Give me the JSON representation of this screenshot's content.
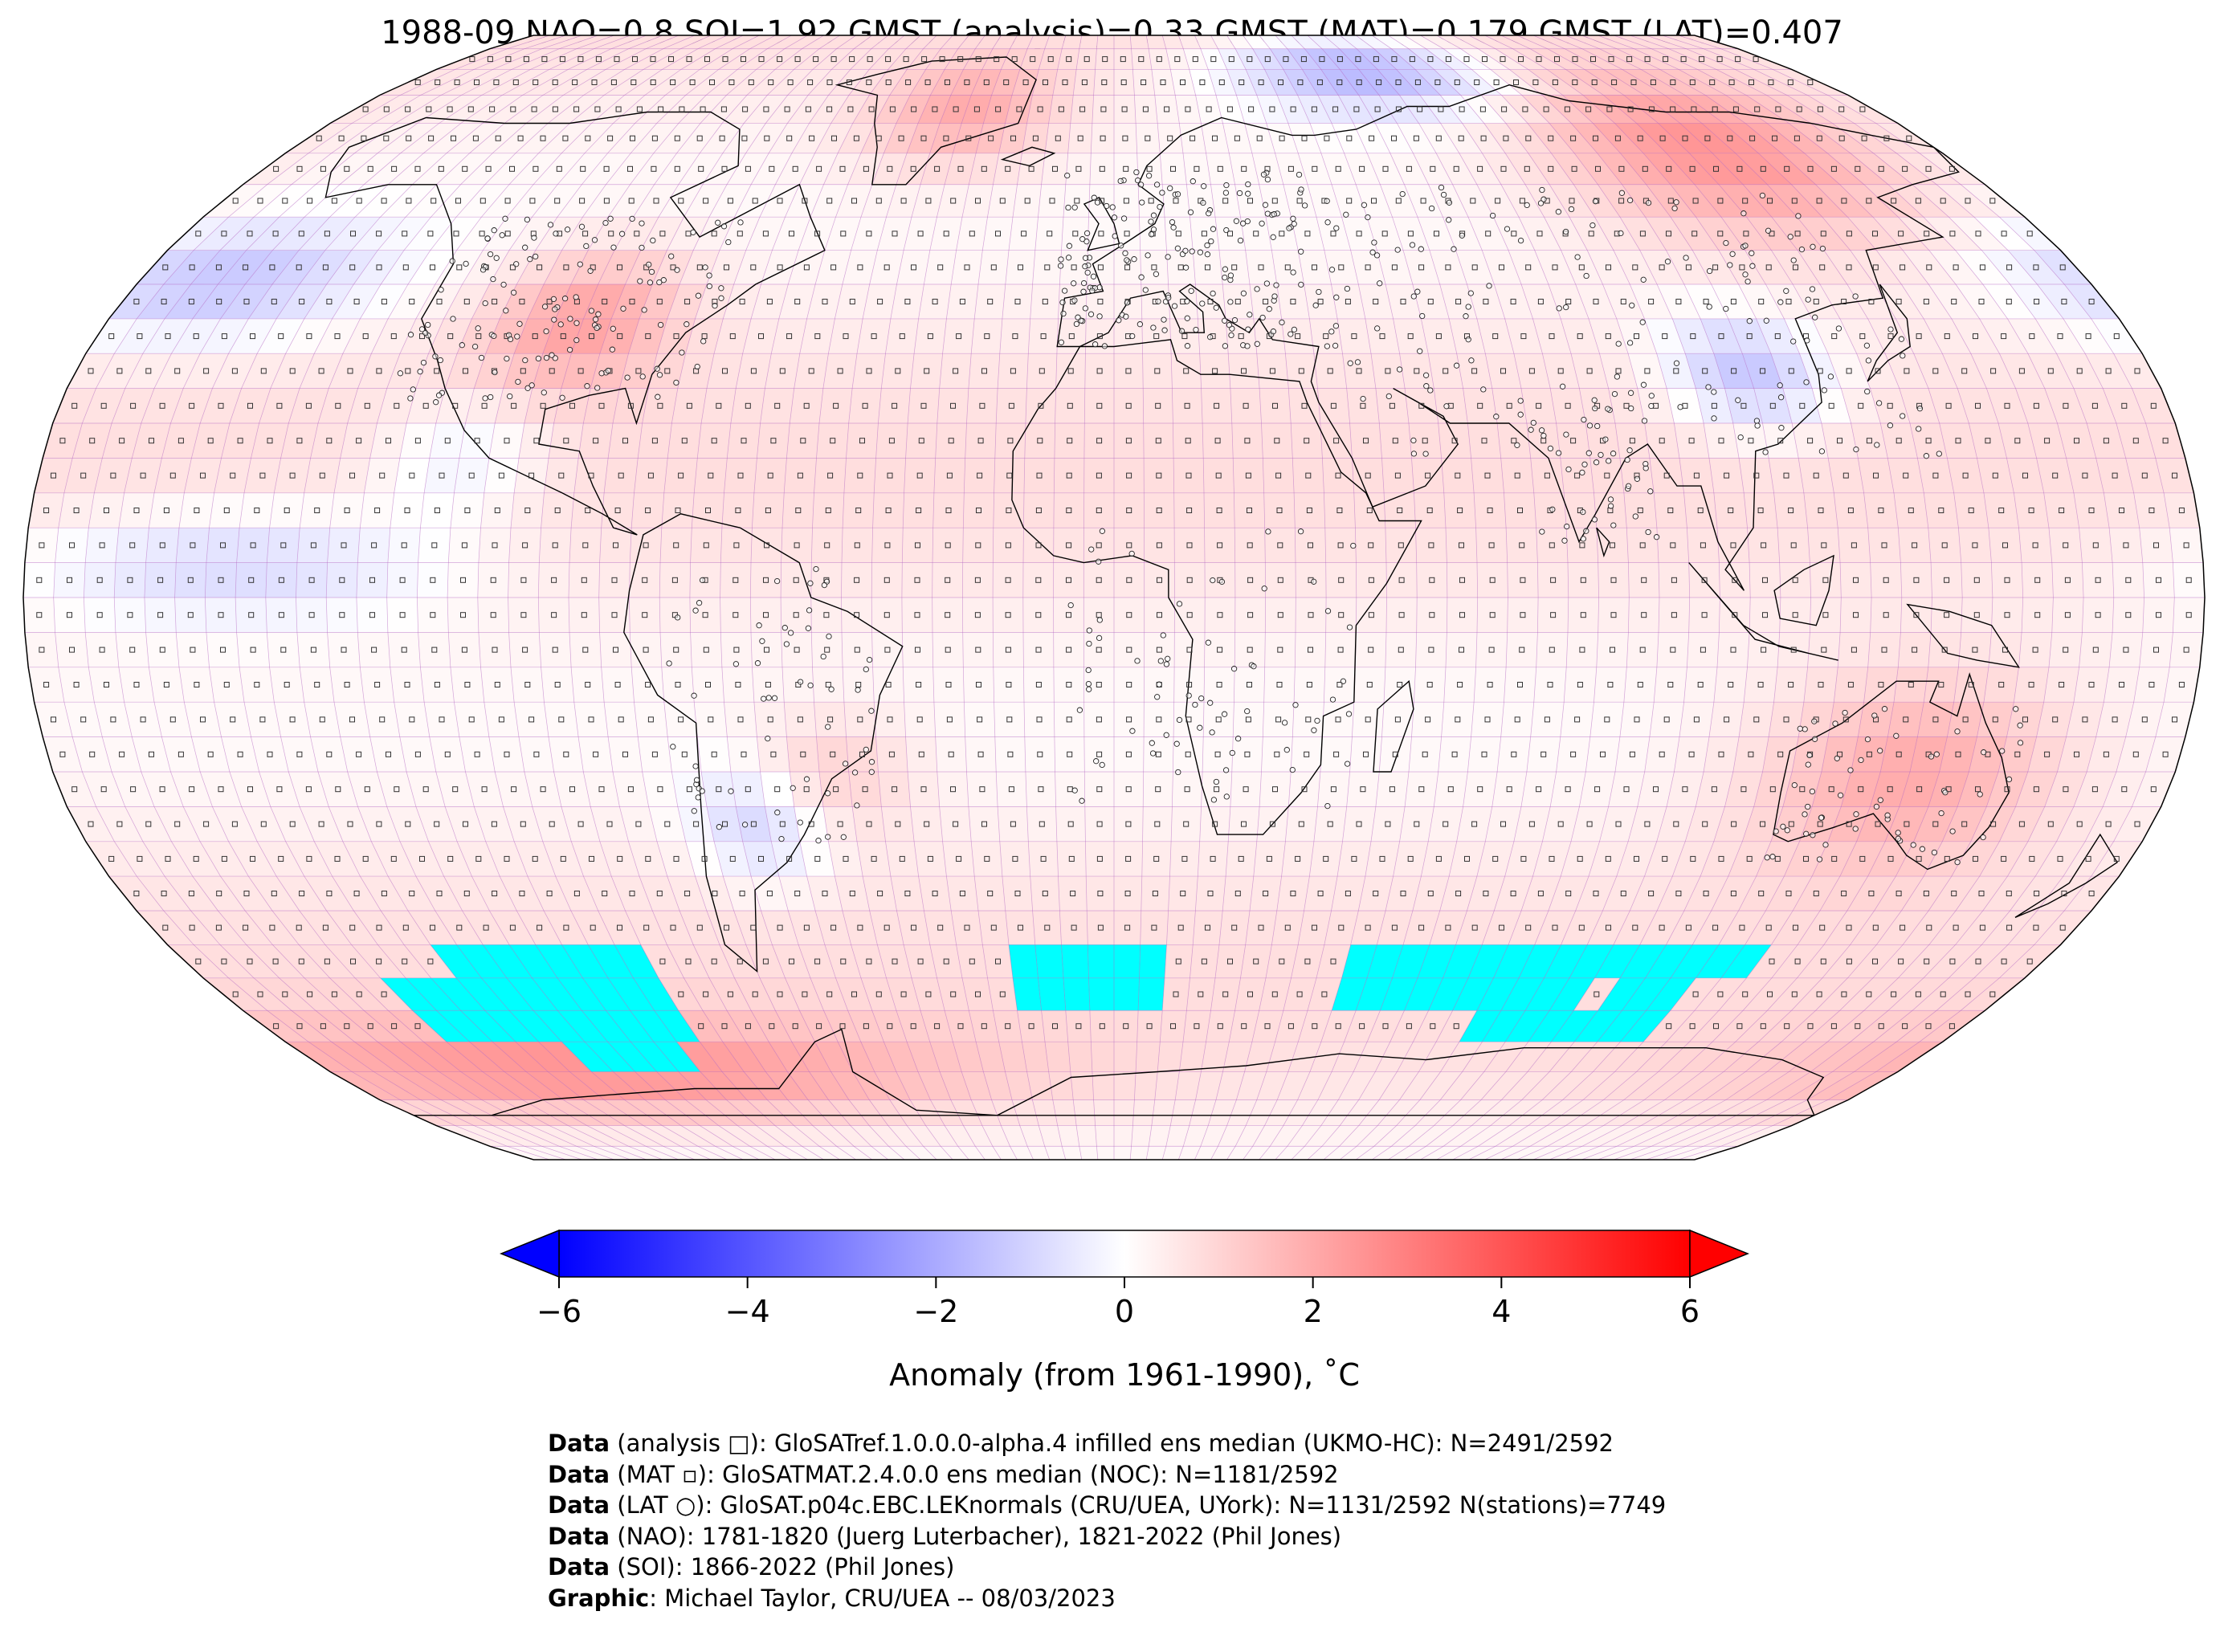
{
  "title": "1988-09 NAO=0.8 SOI=1.92 GMST (analysis)=0.33 GMST (MAT)=0.179 GMST (LAT)=0.407",
  "map": {
    "projection": "Robinson",
    "grid_cell_deg": 5,
    "no_data_color": "#00ffff",
    "graticule_color": "#b060c0",
    "land_outline_color": "#000000",
    "anomaly_regions": [
      {
        "region": "Eastern Siberia",
        "anomaly": 2.3
      },
      {
        "region": "Antarctic coast (Pacific sector)",
        "anomaly": 2.8
      },
      {
        "region": "Australia",
        "anomaly": 1.8
      },
      {
        "region": "Central United States",
        "anomaly": 1.8
      },
      {
        "region": "Greenland",
        "anomaly": 1.6
      },
      {
        "region": "Arctic Ocean (Barents/Kara)",
        "anomaly": -1.8
      },
      {
        "region": "Central China",
        "anomaly": -1.5
      },
      {
        "region": "Eastern Pacific (tropics)",
        "anomaly": -1.2
      },
      {
        "region": "Southern South America",
        "anomaly": -1.3
      },
      {
        "region": "North Pacific",
        "anomaly": -1.1
      }
    ]
  },
  "colorbar": {
    "colors": {
      "min": "#0000ff",
      "mid": "#ffffff",
      "max": "#ff0000"
    },
    "range": [
      -6,
      6
    ],
    "ticks": [
      "−6",
      "−4",
      "−2",
      "0",
      "2",
      "4",
      "6"
    ],
    "tick_values": [
      -6,
      -4,
      -2,
      0,
      2,
      4,
      6
    ],
    "label": "Anomaly (from 1961-1990), ˚C"
  },
  "footer": [
    {
      "bold": "Data",
      "text": " (analysis □): GloSATref.1.0.0.0-alpha.4 infilled ens median (UKMO-HC): N=2491/2592"
    },
    {
      "bold": "Data",
      "text": " (MAT ▫): GloSATMAT.2.4.0.0 ens median (NOC): N=1181/2592"
    },
    {
      "bold": "Data",
      "text": " (LAT ○): GloSAT.p04c.EBC.LEKnormals (CRU/UEA, UYork): N=1131/2592 N(stations)=7749"
    },
    {
      "bold": "Data",
      "text": " (NAO): 1781-1820 (Juerg Luterbacher), 1821-2022 (Phil Jones)"
    },
    {
      "bold": "Data",
      "text": " (SOI): 1866-2022 (Phil Jones)"
    },
    {
      "bold": "Graphic",
      "text": ": Michael Taylor, CRU/UEA -- 08/03/2023"
    }
  ]
}
